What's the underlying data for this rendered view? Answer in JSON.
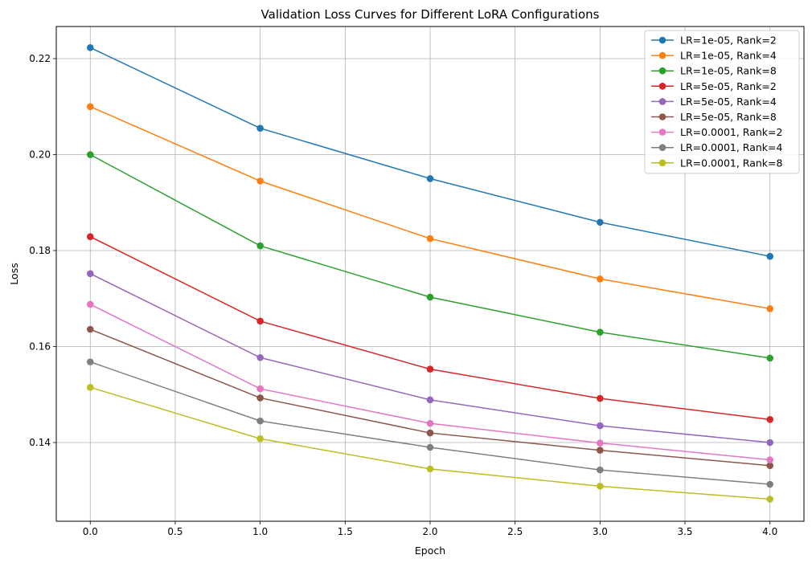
{
  "chart_data": {
    "type": "line",
    "title": "Validation Loss Curves for Different LoRA Configurations",
    "xlabel": "Epoch",
    "ylabel": "Loss",
    "x": [
      0,
      1,
      2,
      3,
      4
    ],
    "xlim": [
      -0.2,
      4.2
    ],
    "ylim": [
      0.1236,
      0.2267
    ],
    "xticks": [
      "0.0",
      "0.5",
      "1.0",
      "1.5",
      "2.0",
      "2.5",
      "3.0",
      "3.5",
      "4.0"
    ],
    "yticks": [
      "0.14",
      "0.16",
      "0.18",
      "0.20",
      "0.22"
    ],
    "grid": true,
    "legend_position": "top-right",
    "series": [
      {
        "name": "LR=1e-05, Rank=2",
        "color": "#1f77b4",
        "values": [
          0.2223,
          0.2055,
          0.195,
          0.1859,
          0.1788
        ]
      },
      {
        "name": "LR=1e-05, Rank=4",
        "color": "#ff7f0e",
        "values": [
          0.21,
          0.1945,
          0.1825,
          0.1741,
          0.1679
        ]
      },
      {
        "name": "LR=1e-05, Rank=8",
        "color": "#2ca02c",
        "values": [
          0.2,
          0.181,
          0.1703,
          0.163,
          0.1576
        ]
      },
      {
        "name": "LR=5e-05, Rank=2",
        "color": "#d62728",
        "values": [
          0.1829,
          0.1653,
          0.1553,
          0.1492,
          0.1448
        ]
      },
      {
        "name": "LR=5e-05, Rank=4",
        "color": "#9467bd",
        "values": [
          0.1752,
          0.1577,
          0.1489,
          0.1435,
          0.14
        ]
      },
      {
        "name": "LR=5e-05, Rank=8",
        "color": "#8c564b",
        "values": [
          0.1636,
          0.1493,
          0.142,
          0.1384,
          0.1352
        ]
      },
      {
        "name": "LR=0.0001, Rank=2",
        "color": "#e377c2",
        "values": [
          0.1688,
          0.1512,
          0.144,
          0.1399,
          0.1364
        ]
      },
      {
        "name": "LR=0.0001, Rank=4",
        "color": "#7f7f7f",
        "values": [
          0.1568,
          0.1445,
          0.139,
          0.1343,
          0.1313
        ]
      },
      {
        "name": "LR=0.0001, Rank=8",
        "color": "#bcbd22",
        "values": [
          0.1515,
          0.1408,
          0.1345,
          0.1309,
          0.1282
        ]
      }
    ]
  }
}
